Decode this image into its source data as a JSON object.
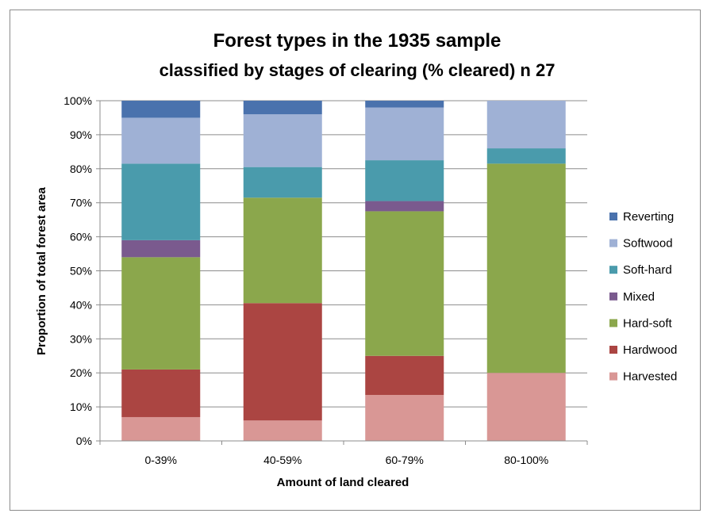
{
  "chart_data": {
    "type": "bar",
    "stacked": true,
    "normalized": true,
    "title": "Forest types in the 1935 sample",
    "subtitle": "classified by stages of clearing (% cleared) n 27",
    "xlabel": "Amount of land cleared",
    "ylabel": "Proportion of total forest area",
    "categories": [
      "0-39%",
      "40-59%",
      "60-79%",
      "80-100%"
    ],
    "ylim": [
      0,
      100
    ],
    "yticks": [
      "0%",
      "10%",
      "20%",
      "30%",
      "40%",
      "50%",
      "60%",
      "70%",
      "80%",
      "90%",
      "100%"
    ],
    "grid": true,
    "legend_position": "right",
    "series": [
      {
        "name": "Harvested",
        "color": "#d99795",
        "values": [
          7,
          6,
          13.5,
          20
        ]
      },
      {
        "name": "Hardwood",
        "color": "#ab4542",
        "values": [
          14,
          34.5,
          11.5,
          0
        ]
      },
      {
        "name": "Hard-soft",
        "color": "#8ba74c",
        "values": [
          33,
          31,
          42.5,
          61.5
        ]
      },
      {
        "name": "Mixed",
        "color": "#7a5a8e",
        "values": [
          5,
          0,
          3,
          0
        ]
      },
      {
        "name": "Soft-hard",
        "color": "#4a9bac",
        "values": [
          22.5,
          9,
          12,
          4.5
        ]
      },
      {
        "name": "Softwood",
        "color": "#9fb1d5",
        "values": [
          13.5,
          15.5,
          15.5,
          14
        ]
      },
      {
        "name": "Reverting",
        "color": "#4a72ad",
        "values": [
          5,
          4,
          2,
          0
        ]
      }
    ]
  }
}
